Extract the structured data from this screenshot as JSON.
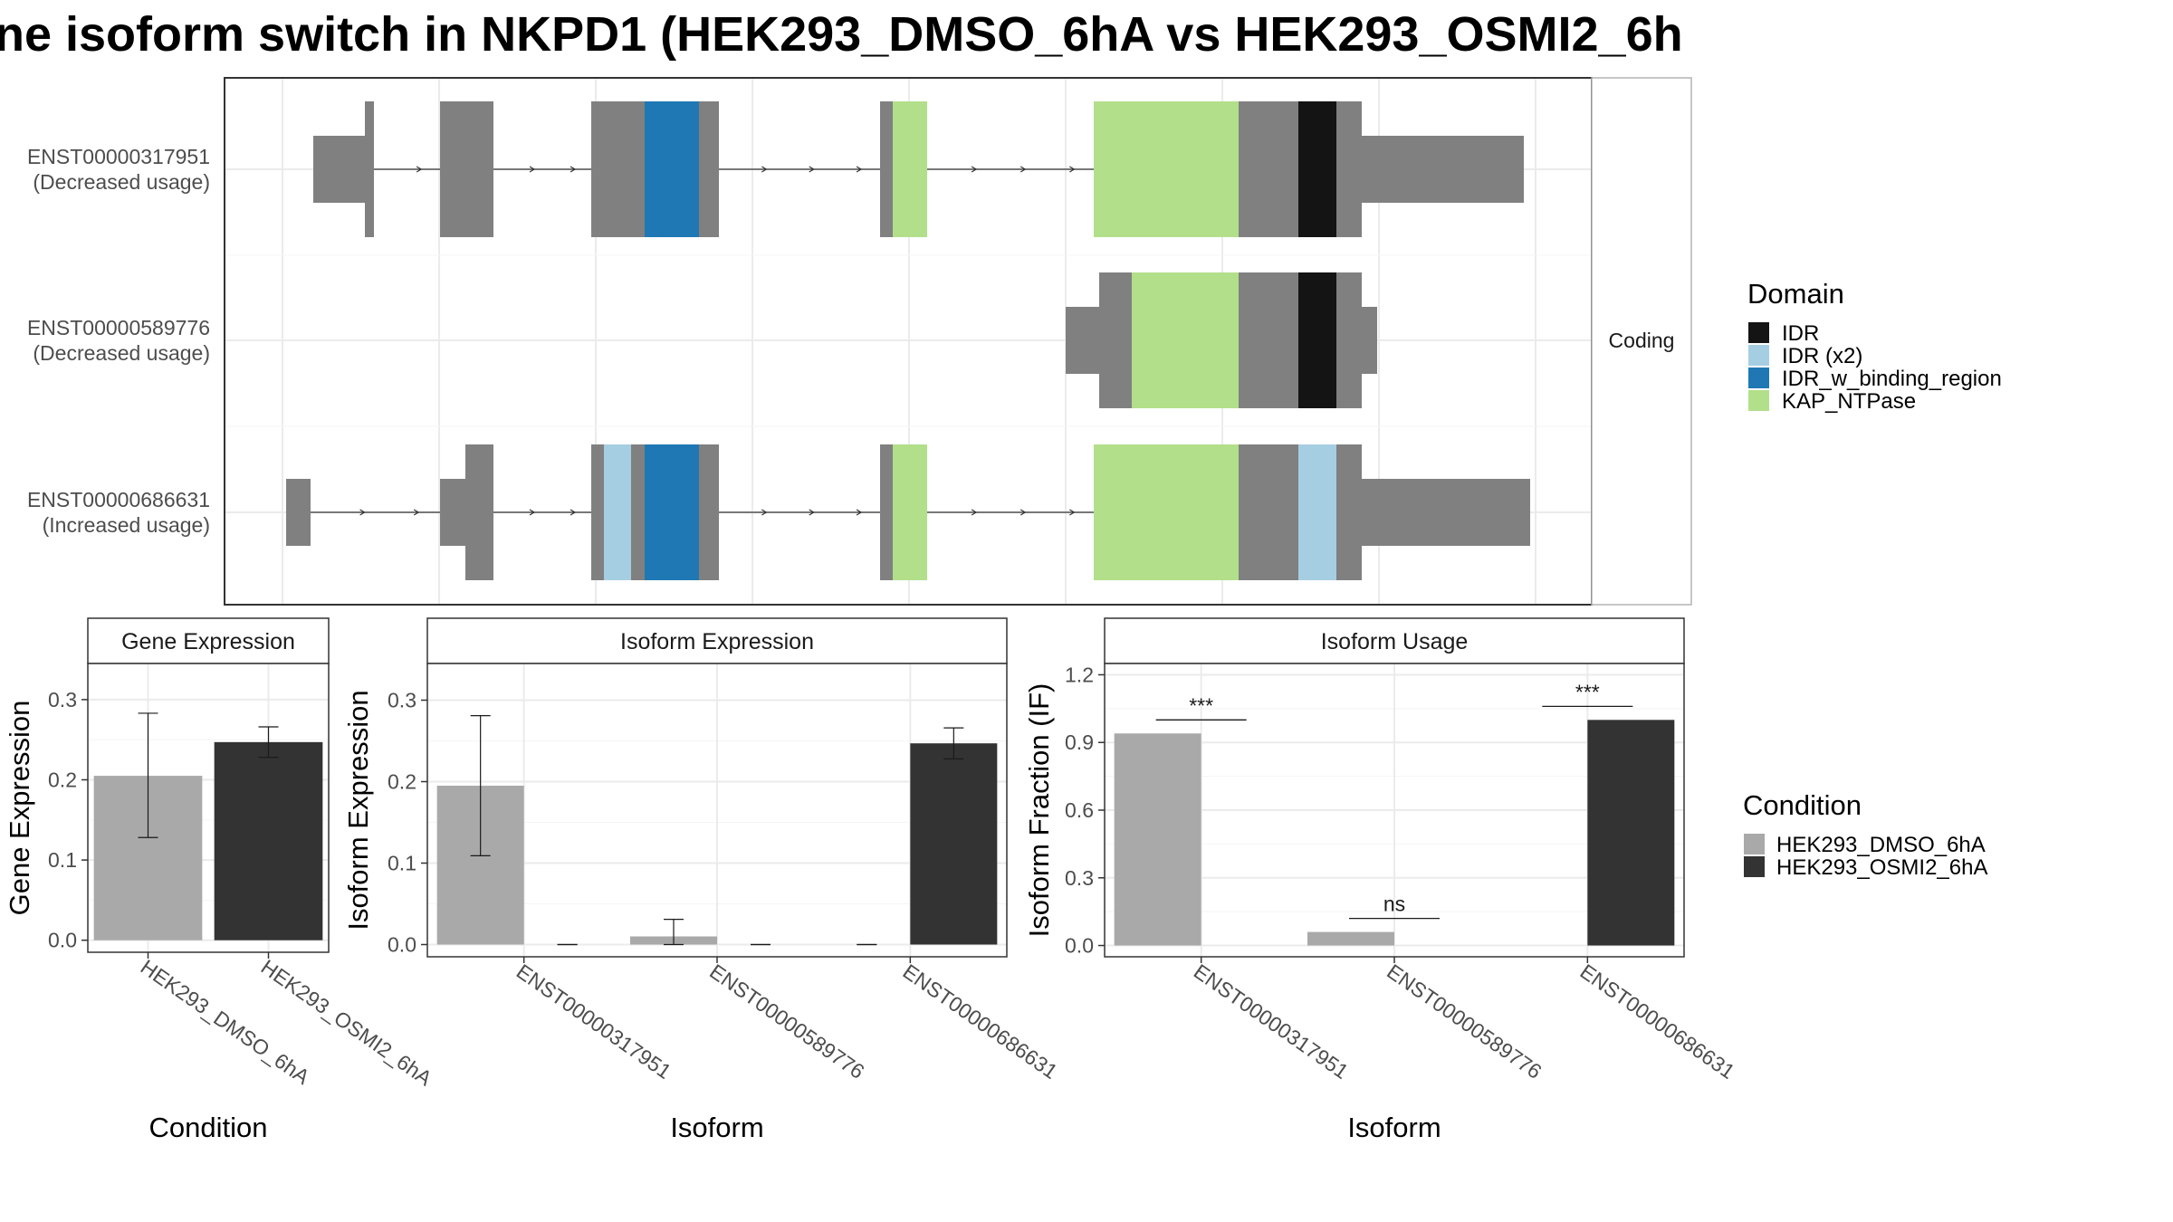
{
  "title": "ne isoform switch in NKPD1 (HEK293_DMSO_6hA vs HEK293_OSMI2_6h",
  "colors": {
    "exon": "#808080",
    "cond_dmso": "#a9a9a9",
    "cond_osmi": "#333333",
    "domain_IDR": "#141414",
    "domain_IDRx2": "#a6cee3",
    "domain_IDRbind": "#1f78b4",
    "domain_KAP": "#b2df8a"
  },
  "structure": {
    "strip": "Coding",
    "transcripts": [
      {
        "id": "ENST00000317951",
        "status": "(Decreased usage)"
      },
      {
        "id": "ENST00000589776",
        "status": "(Decreased usage)"
      },
      {
        "id": "ENST00000686631",
        "status": "(Increased usage)"
      }
    ]
  },
  "legend_domain": {
    "title": "Domain",
    "items": [
      {
        "label": "IDR",
        "color": "#141414"
      },
      {
        "label": "IDR (x2)",
        "color": "#a6cee3"
      },
      {
        "label": "IDR_w_binding_region",
        "color": "#1f78b4"
      },
      {
        "label": "KAP_NTPase",
        "color": "#b2df8a"
      }
    ]
  },
  "legend_condition": {
    "title": "Condition",
    "items": [
      {
        "label": "HEK293_DMSO_6hA",
        "color": "#a9a9a9"
      },
      {
        "label": "HEK293_OSMI2_6hA",
        "color": "#333333"
      }
    ]
  },
  "chart_data": [
    {
      "type": "bar",
      "title": "Gene Expression",
      "xlabel": "Condition",
      "ylabel": "Gene Expression",
      "categories": [
        "HEK293_DMSO_6hA",
        "HEK293_OSMI2_6hA"
      ],
      "values": [
        0.205,
        0.247
      ],
      "error_low": [
        0.128,
        0.228
      ],
      "error_high": [
        0.283,
        0.266
      ],
      "ylim": [
        -0.015,
        0.345
      ],
      "yticks": [
        "0.0",
        "0.1",
        "0.2",
        "0.3"
      ],
      "grid": true
    },
    {
      "type": "bar",
      "title": "Isoform Expression",
      "xlabel": "Isoform",
      "ylabel": "Isoform Expression",
      "categories": [
        "ENST00000317951",
        "ENST00000589776",
        "ENST00000686631"
      ],
      "series": [
        {
          "name": "HEK293_DMSO_6hA",
          "values": [
            0.195,
            0.01,
            0.0
          ],
          "error_low": [
            0.109,
            0.0,
            0.0
          ],
          "error_high": [
            0.281,
            0.031,
            0.0
          ]
        },
        {
          "name": "HEK293_OSMI2_6hA",
          "values": [
            0.0,
            0.0,
            0.247
          ],
          "error_low": [
            0.0,
            0.0,
            0.228
          ],
          "error_high": [
            0.0,
            0.0,
            0.266
          ]
        }
      ],
      "ylim": [
        -0.015,
        0.345
      ],
      "yticks": [
        "0.0",
        "0.1",
        "0.2",
        "0.3"
      ],
      "grid": true
    },
    {
      "type": "bar",
      "title": "Isoform Usage",
      "xlabel": "Isoform",
      "ylabel": "Isoform Fraction (IF)",
      "categories": [
        "ENST00000317951",
        "ENST00000589776",
        "ENST00000686631"
      ],
      "series": [
        {
          "name": "HEK293_DMSO_6hA",
          "values": [
            0.94,
            0.06,
            0.0
          ]
        },
        {
          "name": "HEK293_OSMI2_6hA",
          "values": [
            0.0,
            0.0,
            1.0
          ]
        }
      ],
      "significance": [
        "***",
        "ns",
        "***"
      ],
      "ylim": [
        -0.05,
        1.25
      ],
      "yticks": [
        "0.0",
        "0.3",
        "0.6",
        "0.9",
        "1.2"
      ],
      "grid": true
    }
  ]
}
